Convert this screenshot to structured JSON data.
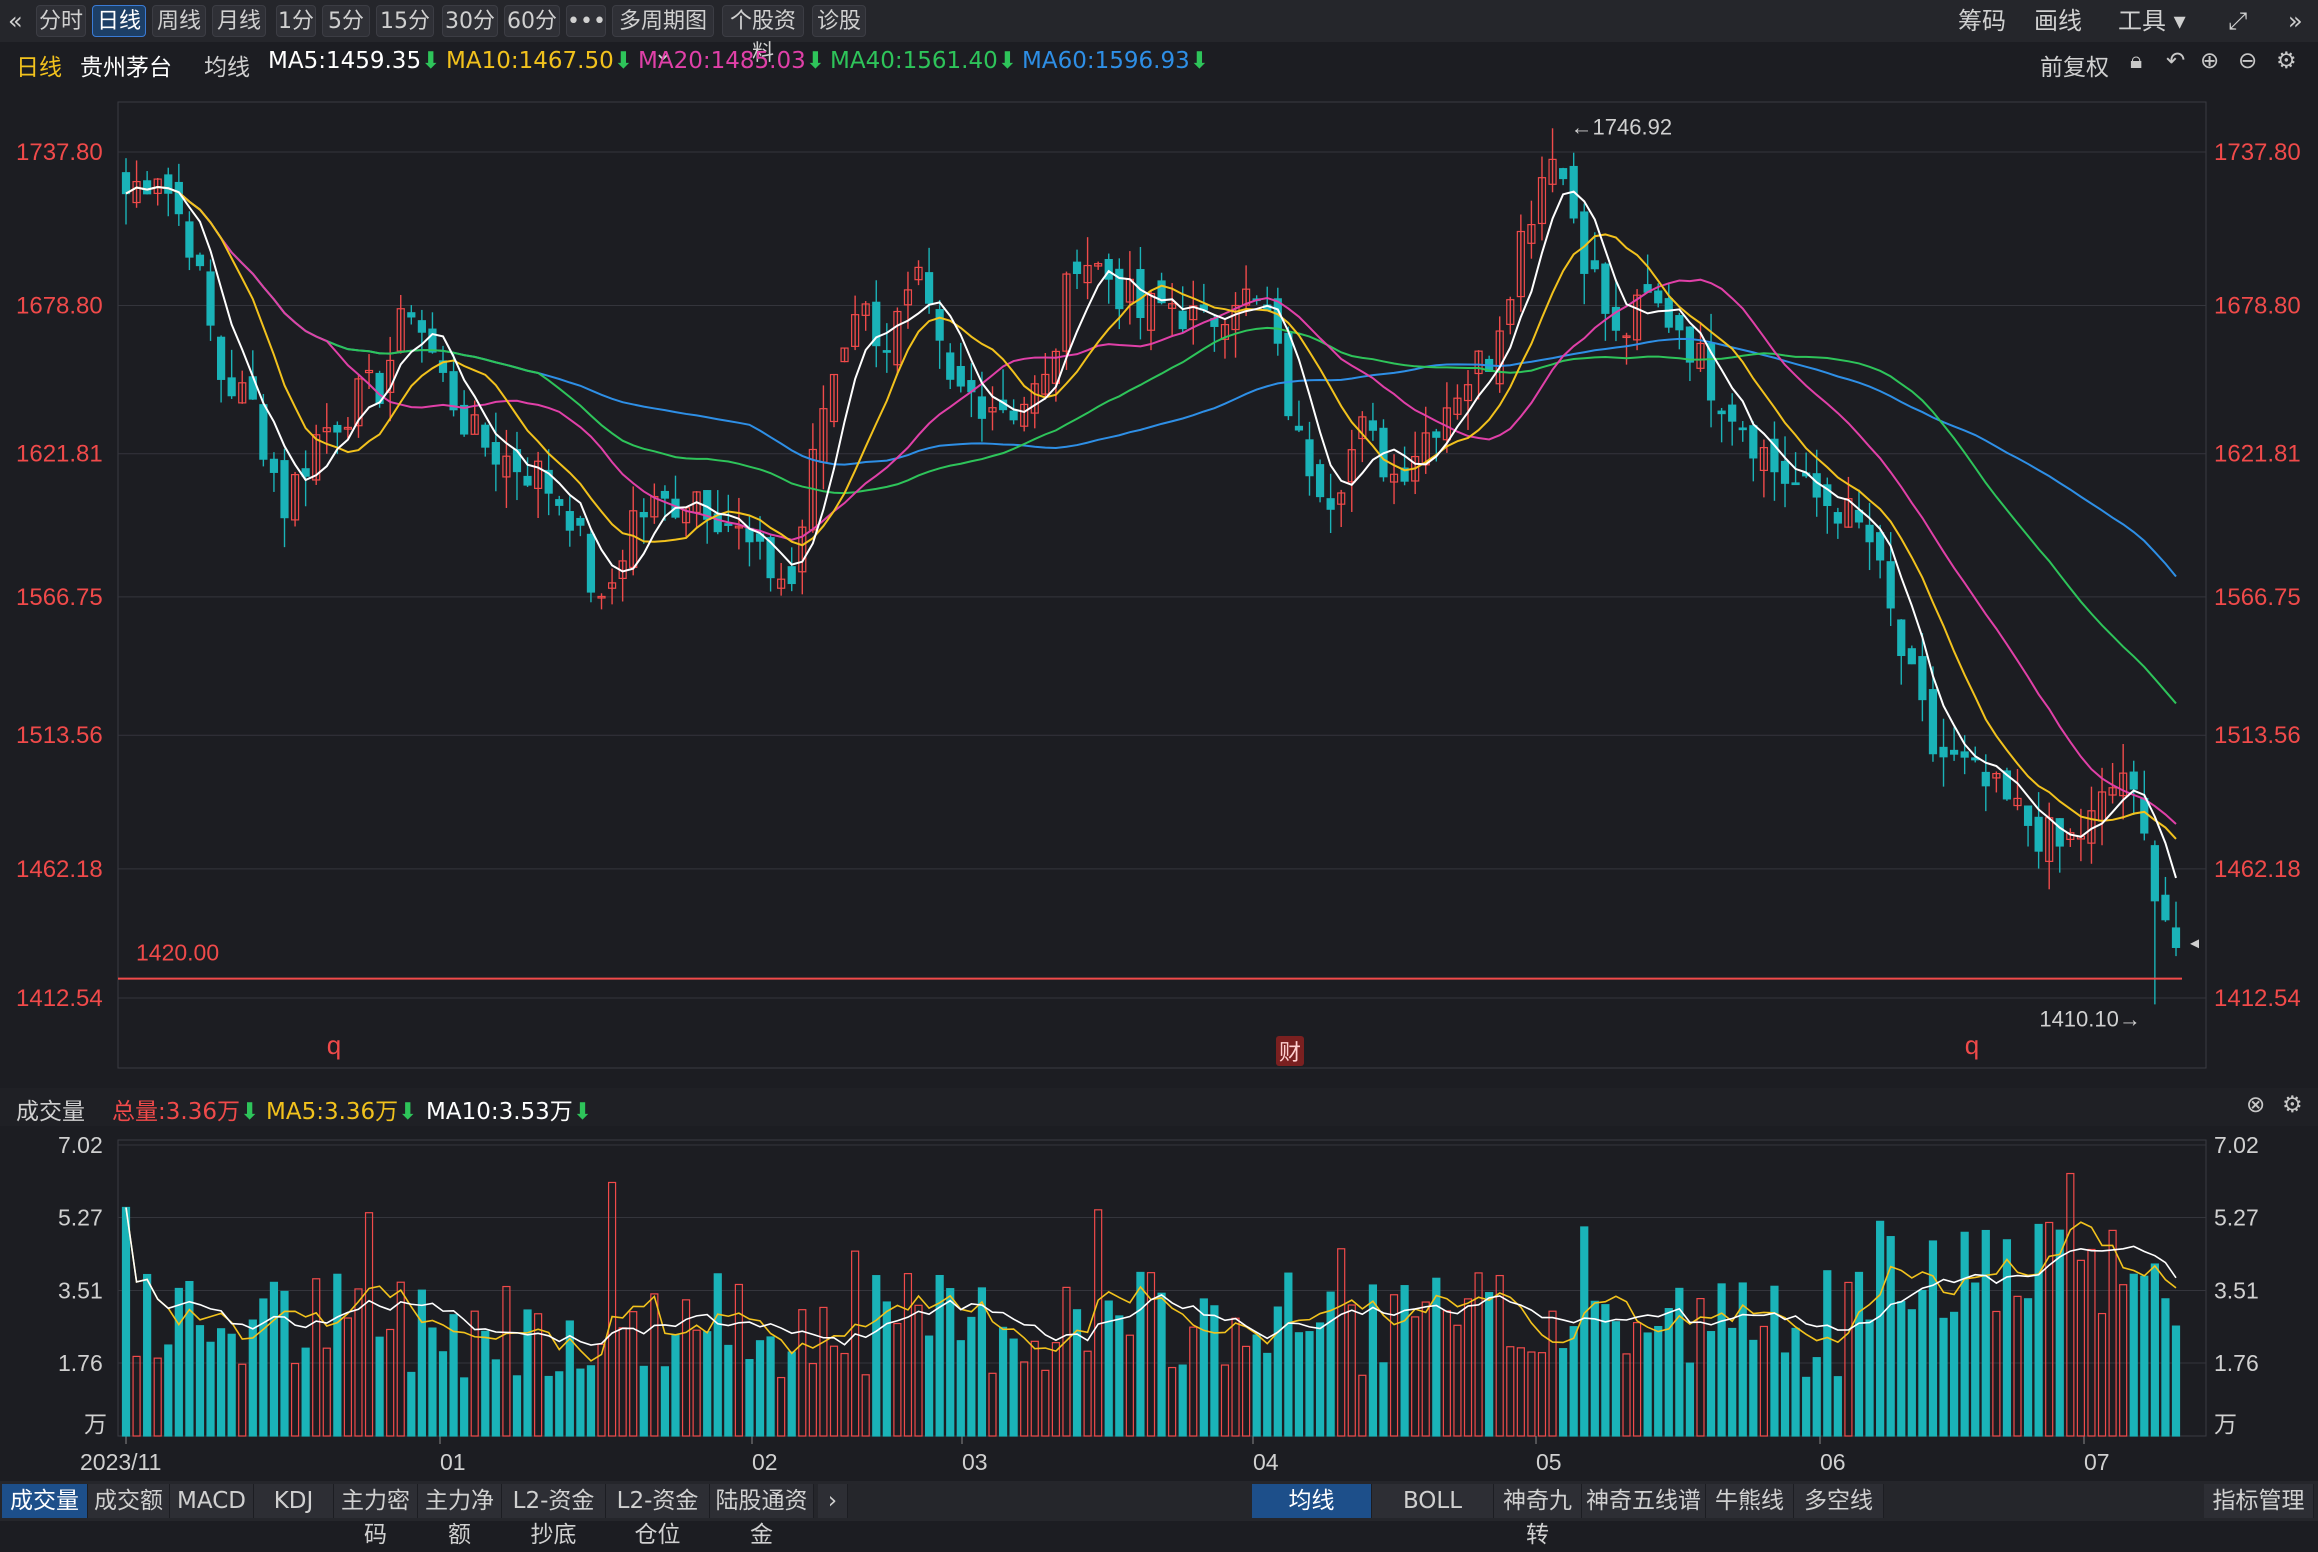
{
  "topbar": {
    "periods": [
      "分时",
      "日线",
      "周线",
      "月线",
      "1分",
      "5分",
      "15分",
      "30分",
      "60分",
      "•••",
      "多周期图 ⌄",
      "个股资料",
      "诊股"
    ],
    "active": "日线",
    "right": [
      "筹码",
      "画线",
      "工具 ▾"
    ]
  },
  "ma_bar": {
    "period": "日线",
    "stock": "贵州茅台",
    "label": "均线",
    "ma5": "MA5:1459.35",
    "ma10": "MA10:1467.50",
    "ma20": "MA20:1485.03",
    "ma40": "MA40:1561.40",
    "ma60": "MA60:1596.93",
    "adjust": "前复权"
  },
  "colors": {
    "up": "#f04a4a",
    "down": "#1ab3b8",
    "ma5": "#ffffff",
    "ma10": "#f2c21d",
    "ma20": "#e040a8",
    "ma40": "#2ec45a",
    "ma60": "#2e8fe6",
    "grid": "#34353c",
    "axis_price": "#f04a4a"
  },
  "volume_bar": {
    "title": "成交量",
    "total": "总量:3.36万",
    "ma5": "MA5:3.36万",
    "ma10": "MA10:3.53万"
  },
  "bottom_tabs_left": [
    "成交量",
    "成交额",
    "MACD",
    "KDJ",
    "主力密码",
    "主力净额",
    "L2-资金抄底",
    "L2-资金仓位",
    "陆股通资金"
  ],
  "bottom_tabs_right": [
    "均线",
    "BOLL",
    "神奇九转",
    "神奇五线谱",
    "牛熊线",
    "多空线"
  ],
  "bottom_right": "指标管理",
  "chart_data": {
    "type": "candlestick",
    "y_ticks": [
      "1737.80",
      "1678.80",
      "1621.81",
      "1566.75",
      "1513.56",
      "1462.18",
      "1412.54"
    ],
    "y_values": [
      1737.8,
      1678.8,
      1621.81,
      1566.75,
      1513.56,
      1462.18,
      1412.54
    ],
    "high_label": "←1746.92",
    "low_label": "1410.10→",
    "hline_label": "1420.00",
    "hline_value": 1420.0,
    "markers": [
      "q",
      "财",
      "q"
    ],
    "x_labels": [
      "2023/11",
      "01",
      "02",
      "03",
      "04",
      "05",
      "06",
      "07"
    ],
    "volume_ticks": [
      "7.02",
      "5.27",
      "3.51",
      "1.76",
      "万"
    ],
    "volume_values": [
      7.02,
      5.27,
      3.51,
      1.76
    ],
    "anchors": [
      [
        0,
        1722
      ],
      [
        3,
        1732
      ],
      [
        6,
        1705
      ],
      [
        9,
        1652
      ],
      [
        12,
        1640
      ],
      [
        15,
        1602
      ],
      [
        18,
        1628
      ],
      [
        21,
        1640
      ],
      [
        24,
        1648
      ],
      [
        27,
        1680
      ],
      [
        30,
        1650
      ],
      [
        33,
        1628
      ],
      [
        36,
        1620
      ],
      [
        39,
        1614
      ],
      [
        42,
        1600
      ],
      [
        45,
        1560
      ],
      [
        48,
        1598
      ],
      [
        51,
        1602
      ],
      [
        54,
        1608
      ],
      [
        57,
        1596
      ],
      [
        60,
        1580
      ],
      [
        63,
        1572
      ],
      [
        66,
        1640
      ],
      [
        69,
        1680
      ],
      [
        72,
        1665
      ],
      [
        75,
        1685
      ],
      [
        78,
        1646
      ],
      [
        81,
        1644
      ],
      [
        84,
        1640
      ],
      [
        87,
        1648
      ],
      [
        90,
        1700
      ],
      [
        93,
        1690
      ],
      [
        96,
        1675
      ],
      [
        99,
        1680
      ],
      [
        102,
        1670
      ],
      [
        105,
        1685
      ],
      [
        108,
        1674
      ],
      [
        111,
        1625
      ],
      [
        114,
        1608
      ],
      [
        117,
        1630
      ],
      [
        120,
        1614
      ],
      [
        123,
        1630
      ],
      [
        126,
        1648
      ],
      [
        129,
        1660
      ],
      [
        132,
        1705
      ],
      [
        135,
        1742
      ],
      [
        138,
        1700
      ],
      [
        141,
        1665
      ],
      [
        144,
        1680
      ],
      [
        147,
        1672
      ],
      [
        150,
        1650
      ],
      [
        153,
        1635
      ],
      [
        156,
        1616
      ],
      [
        159,
        1606
      ],
      [
        162,
        1602
      ],
      [
        165,
        1588
      ],
      [
        168,
        1545
      ],
      [
        171,
        1508
      ],
      [
        174,
        1500
      ],
      [
        177,
        1490
      ],
      [
        180,
        1480
      ],
      [
        183,
        1470
      ],
      [
        186,
        1480
      ],
      [
        189,
        1500
      ],
      [
        192,
        1458
      ],
      [
        194,
        1432
      ]
    ]
  }
}
